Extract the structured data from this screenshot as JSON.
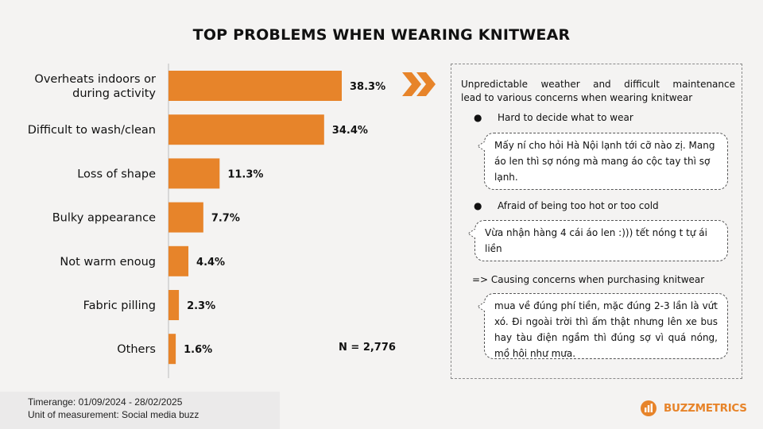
{
  "title": "TOP PROBLEMS WHEN WEARING KNITWEAR",
  "chart_data": {
    "type": "bar",
    "orientation": "horizontal",
    "categories": [
      [
        "Overheats indoors or",
        "during activity"
      ],
      [
        "Difficult to wash/clean"
      ],
      [
        "Loss of shape"
      ],
      [
        "Bulky appearance"
      ],
      [
        "Not warm enoug"
      ],
      [
        "Fabric pilling"
      ],
      [
        "Others"
      ]
    ],
    "values": [
      38.3,
      34.4,
      11.3,
      7.7,
      4.4,
      2.3,
      1.6
    ],
    "value_labels": [
      "38.3%",
      "34.4%",
      "11.3%",
      "7.7%",
      "4.4%",
      "2.3%",
      "1.6%"
    ],
    "bar_color": "#e7842a",
    "xlim": [
      0,
      40
    ],
    "grid": false,
    "legend": "none"
  },
  "sample_size": "N = 2,776",
  "panel": {
    "heading_line1": "Unpredictable weather and difficult maintenance",
    "heading_line2": "lead to various concerns when wearing knitwear",
    "bullet_char": "●",
    "bullet1": "Hard to decide what to wear",
    "quote1": "Mấy ní cho hỏi Hà Nội lạnh tới cỡ nào zị. Mang áo len thì sợ nóng mà mang áo cộc tay thì sợ lạnh.",
    "bullet2": "Afraid of being too hot or too cold",
    "quote2": "Vừa nhận hàng 4 cái áo len :))) tết nóng t tự ái liền",
    "conclusion": "=> Causing concerns when purchasing knitwear",
    "quote3": "mua về đúng phí tiền, mặc đúng 2-3 lần là vứt xó. Đi ngoài trời thì ấm thật nhưng lên xe bus hay tàu điện ngầm thì đúng sợ vì quá nóng, mồ hôi như mưa."
  },
  "footer": {
    "timerange": "Timerange: 01/09/2024 - 28/02/2025",
    "unit": "Unit of measurement: Social media buzz"
  },
  "logo": {
    "text": "BUZZMETRICS",
    "icon": "bar-chart-icon",
    "color": "#e7842a"
  },
  "accent_color": "#e7842a",
  "arrow_icon": "double-chevron-right-icon"
}
